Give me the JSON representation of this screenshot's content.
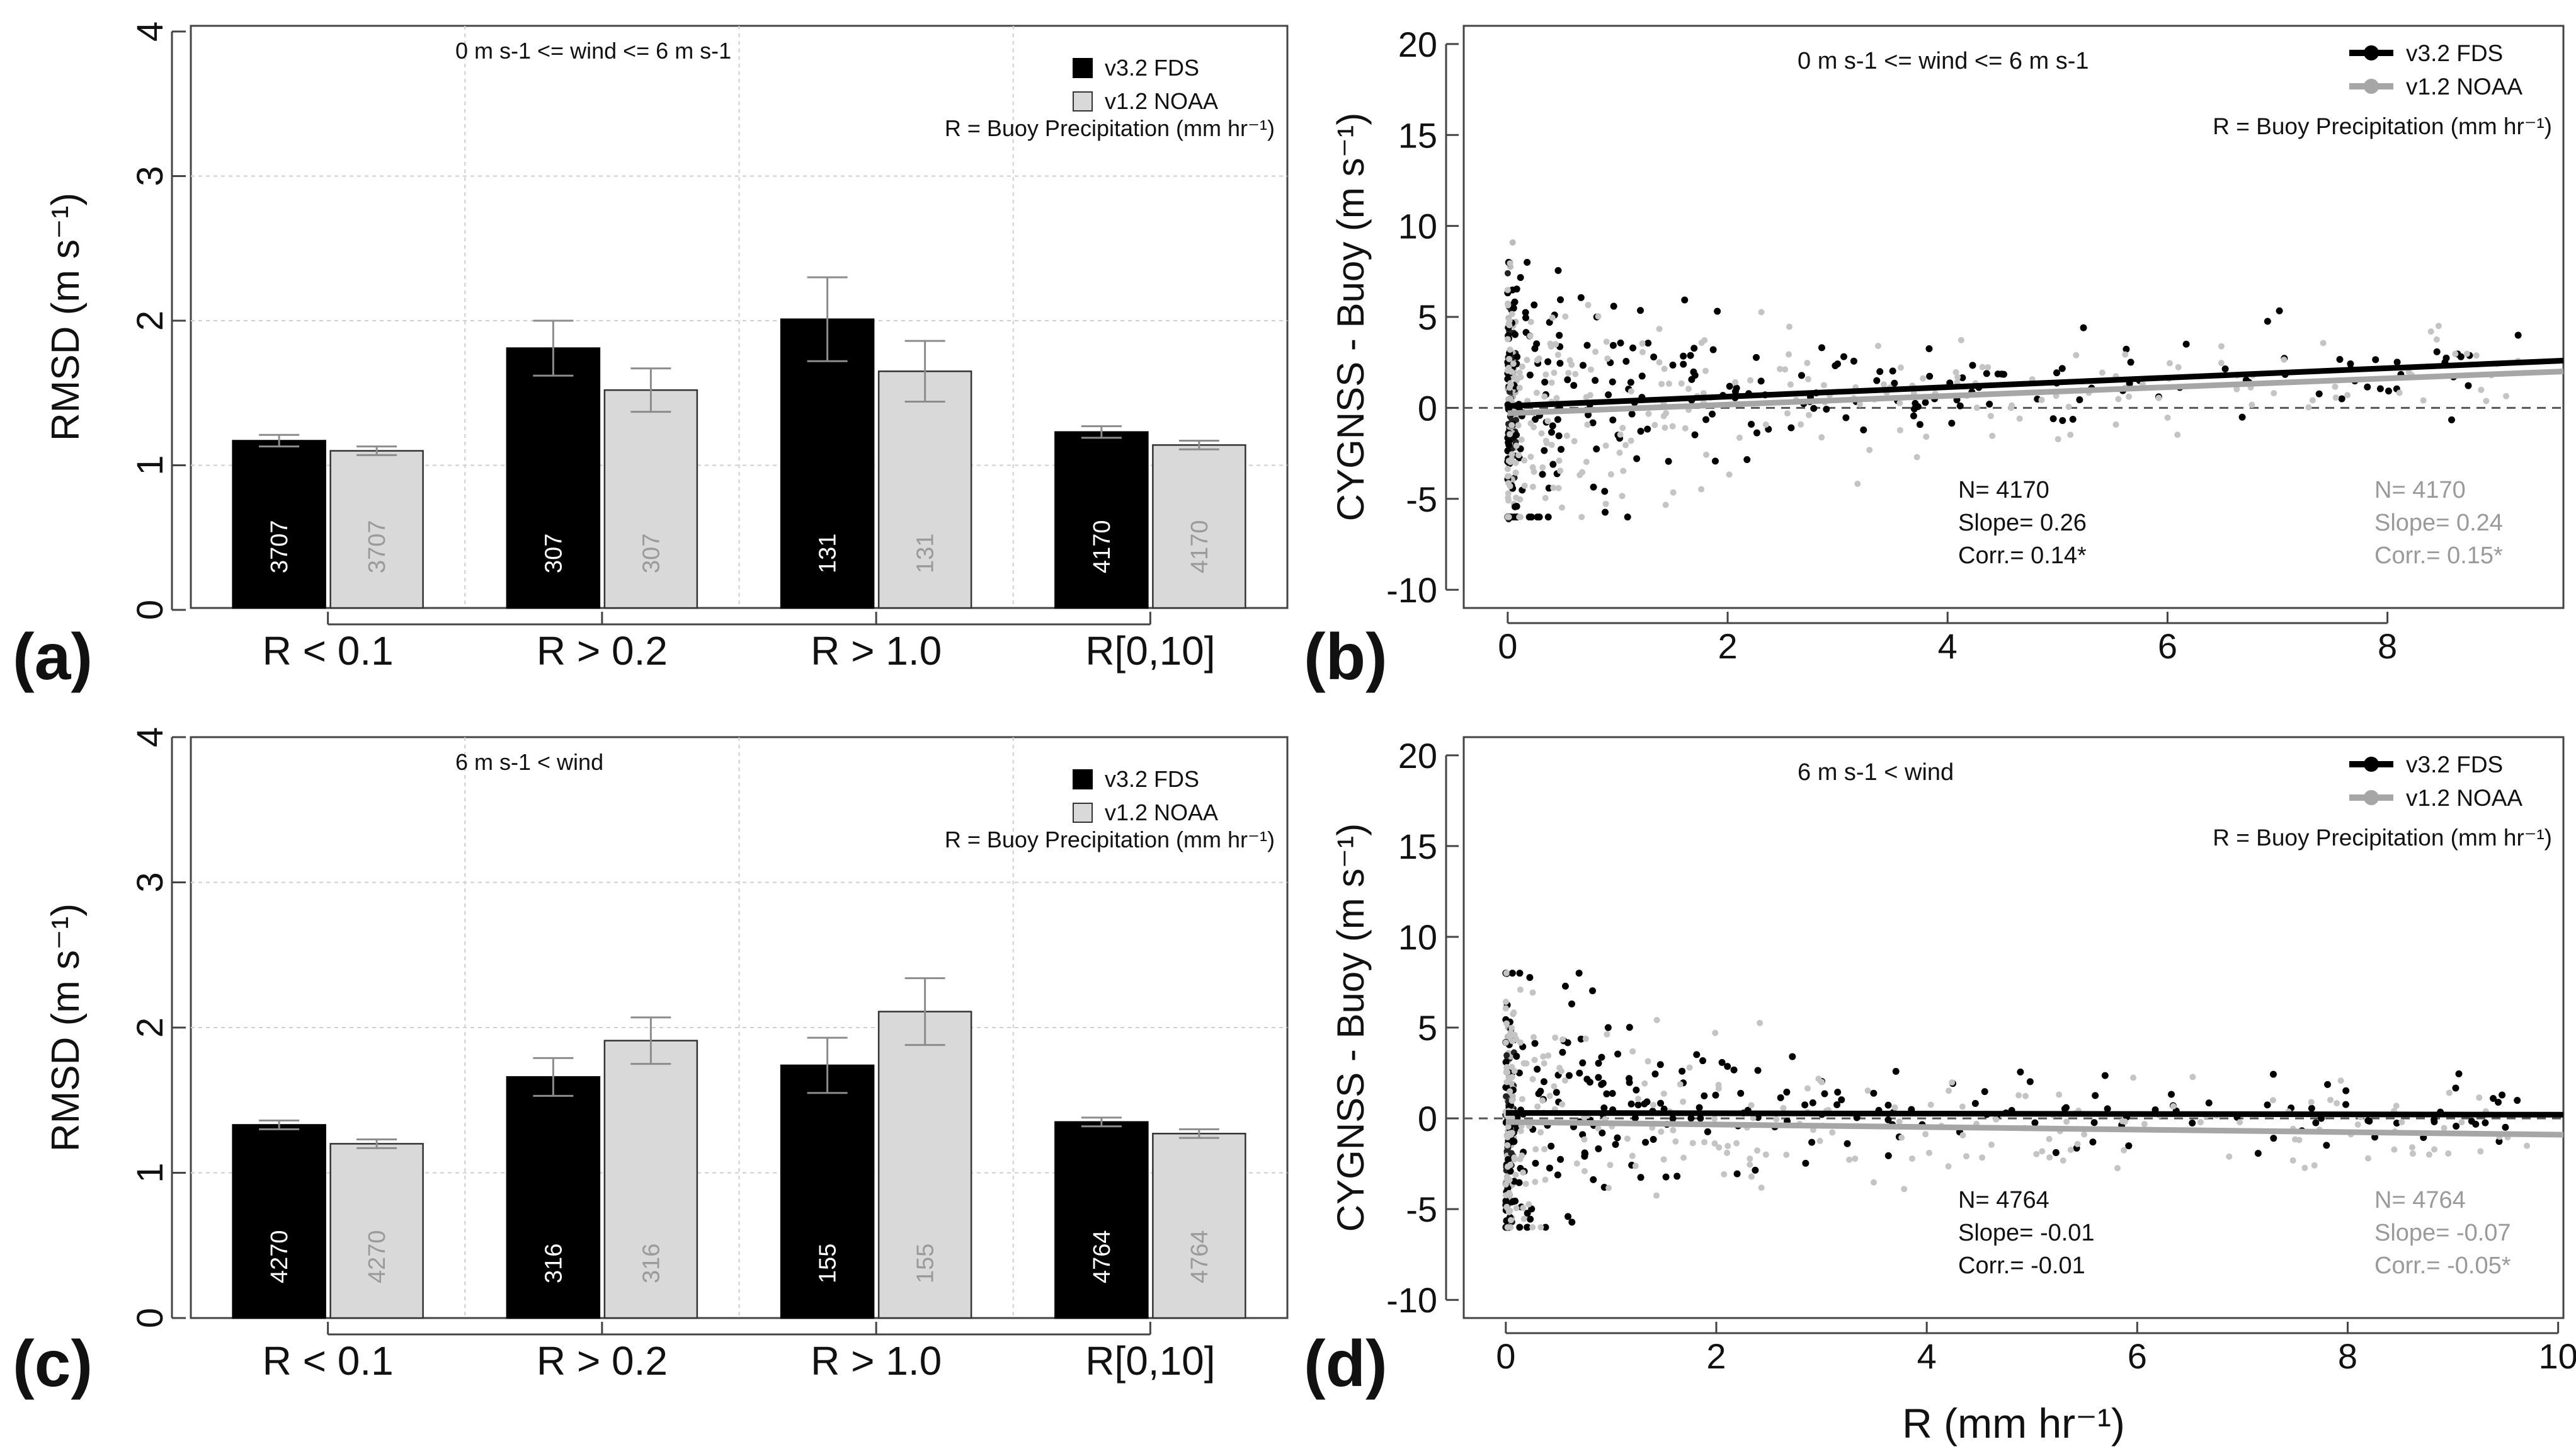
{
  "figure": {
    "panel_labels": [
      "(a)",
      "(b)",
      "(c)",
      "(d)"
    ],
    "colors": {
      "fds": "#000000",
      "noaa": "#d9d9d9",
      "noaa_text": "#9a9a9a",
      "noaa_line": "#a6a6a6",
      "grid": "#cfcfcf",
      "axis": "#444444"
    }
  },
  "chart_data": [
    {
      "panel": "(a)",
      "type": "bar",
      "annotation": "0 m s-1 <= wind <= 6 m s-1",
      "precip_note": "R = Buoy Precipitation (mm hr⁻¹)",
      "ylabel": "RMSD (m s⁻¹)",
      "xlabel": "",
      "ylim": [
        0,
        4
      ],
      "yticks": [
        0,
        1,
        2,
        3,
        4
      ],
      "categories": [
        "R < 0.1",
        "R > 0.2",
        "R > 1.0",
        "R[0,10]"
      ],
      "series": [
        {
          "name": "v3.2 FDS",
          "values": [
            1.17,
            1.81,
            2.01,
            1.23
          ],
          "err": [
            0.04,
            0.19,
            0.29,
            0.04
          ],
          "counts": [
            "3707",
            "307",
            "131",
            "4170"
          ]
        },
        {
          "name": "v1.2 NOAA",
          "values": [
            1.1,
            1.52,
            1.65,
            1.14
          ],
          "err": [
            0.03,
            0.15,
            0.21,
            0.03
          ],
          "counts": [
            "3707",
            "307",
            "131",
            "4170"
          ]
        }
      ]
    },
    {
      "panel": "(b)",
      "type": "scatter",
      "annotation": "0 m s-1 <= wind <= 6 m s-1",
      "precip_note": "R = Buoy Precipitation (mm hr⁻¹)",
      "ylabel": "CYGNSS - Buoy (m s⁻¹)",
      "xlabel": "",
      "xlim": [
        -0.4,
        9.6
      ],
      "ylim": [
        -11,
        21
      ],
      "xticks": [
        0,
        2,
        4,
        6,
        8
      ],
      "yticks": [
        -10,
        -5,
        0,
        5,
        10,
        15,
        20
      ],
      "series": [
        {
          "name": "v3.2 FDS",
          "fit": {
            "intercept": 0.1,
            "slope": 0.26
          },
          "stats": [
            "N= 4170",
            "Slope= 0.26",
            "Corr.= 0.14*"
          ]
        },
        {
          "name": "v1.2 NOAA",
          "fit": {
            "intercept": -0.3,
            "slope": 0.24
          },
          "stats": [
            "N= 4170",
            "Slope= 0.24",
            "Corr.= 0.15*"
          ]
        }
      ]
    },
    {
      "panel": "(c)",
      "type": "bar",
      "annotation": "6 m s-1 < wind",
      "precip_note": "R = Buoy Precipitation (mm hr⁻¹)",
      "ylabel": "RMSD (m s⁻¹)",
      "xlabel": "",
      "ylim": [
        0,
        4
      ],
      "yticks": [
        0,
        1,
        2,
        3,
        4
      ],
      "categories": [
        "R < 0.1",
        "R > 0.2",
        "R > 1.0",
        "R[0,10]"
      ],
      "series": [
        {
          "name": "v3.2 FDS",
          "values": [
            1.33,
            1.66,
            1.74,
            1.35
          ],
          "err": [
            0.03,
            0.13,
            0.19,
            0.03
          ],
          "counts": [
            "4270",
            "316",
            "155",
            "4764"
          ]
        },
        {
          "name": "v1.2 NOAA",
          "values": [
            1.2,
            1.91,
            2.11,
            1.27
          ],
          "err": [
            0.03,
            0.16,
            0.23,
            0.03
          ],
          "counts": [
            "4270",
            "316",
            "155",
            "4764"
          ]
        }
      ]
    },
    {
      "panel": "(d)",
      "type": "scatter",
      "annotation": "6 m s-1 < wind",
      "precip_note": "R = Buoy Precipitation (mm hr⁻¹)",
      "ylabel": "CYGNSS - Buoy (m s⁻¹)",
      "xlabel": "R (mm hr⁻¹)",
      "xlim": [
        -0.4,
        10.05
      ],
      "ylim": [
        -11,
        21
      ],
      "xticks": [
        0,
        2,
        4,
        6,
        8,
        10
      ],
      "yticks": [
        -10,
        -5,
        0,
        5,
        10,
        15,
        20
      ],
      "series": [
        {
          "name": "v3.2 FDS",
          "fit": {
            "intercept": 0.3,
            "slope": -0.01
          },
          "stats": [
            "N= 4764",
            "Slope= -0.01",
            "Corr.= -0.01"
          ]
        },
        {
          "name": "v1.2 NOAA",
          "fit": {
            "intercept": -0.2,
            "slope": -0.07
          },
          "stats": [
            "N= 4764",
            "Slope= -0.07",
            "Corr.= -0.05*"
          ]
        }
      ]
    }
  ]
}
